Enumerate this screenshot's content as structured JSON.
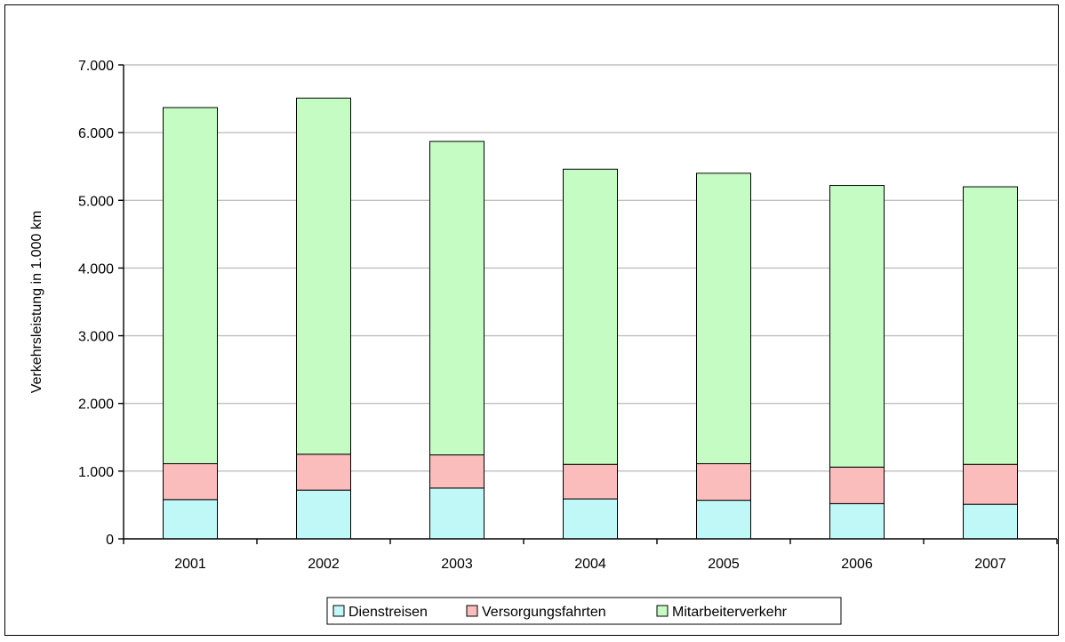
{
  "chart_data": {
    "type": "bar",
    "stacked": true,
    "categories": [
      "2001",
      "2002",
      "2003",
      "2004",
      "2005",
      "2006",
      "2007"
    ],
    "series": [
      {
        "name": "Dienstreisen",
        "color": "#c0f7f7",
        "values": [
          580,
          720,
          750,
          590,
          570,
          520,
          510
        ]
      },
      {
        "name": "Versorgungsfahrten",
        "color": "#fbbcbc",
        "values": [
          530,
          530,
          490,
          510,
          540,
          540,
          590
        ]
      },
      {
        "name": "Mitarbeiterverkehr",
        "color": "#c4fcc4",
        "values": [
          5260,
          5260,
          4630,
          4360,
          4290,
          4160,
          4100
        ]
      }
    ],
    "ylabel": "Verkehrsleistung in 1.000 km",
    "ylim": [
      0,
      7000
    ],
    "yticks": [
      {
        "value": 0,
        "label": "0"
      },
      {
        "value": 1000,
        "label": "1.000"
      },
      {
        "value": 2000,
        "label": "2.000"
      },
      {
        "value": 3000,
        "label": "3.000"
      },
      {
        "value": 4000,
        "label": "4.000"
      },
      {
        "value": 5000,
        "label": "5.000"
      },
      {
        "value": 6000,
        "label": "6.000"
      },
      {
        "value": 7000,
        "label": "7.000"
      }
    ],
    "grid": true,
    "legend_position": "bottom"
  }
}
